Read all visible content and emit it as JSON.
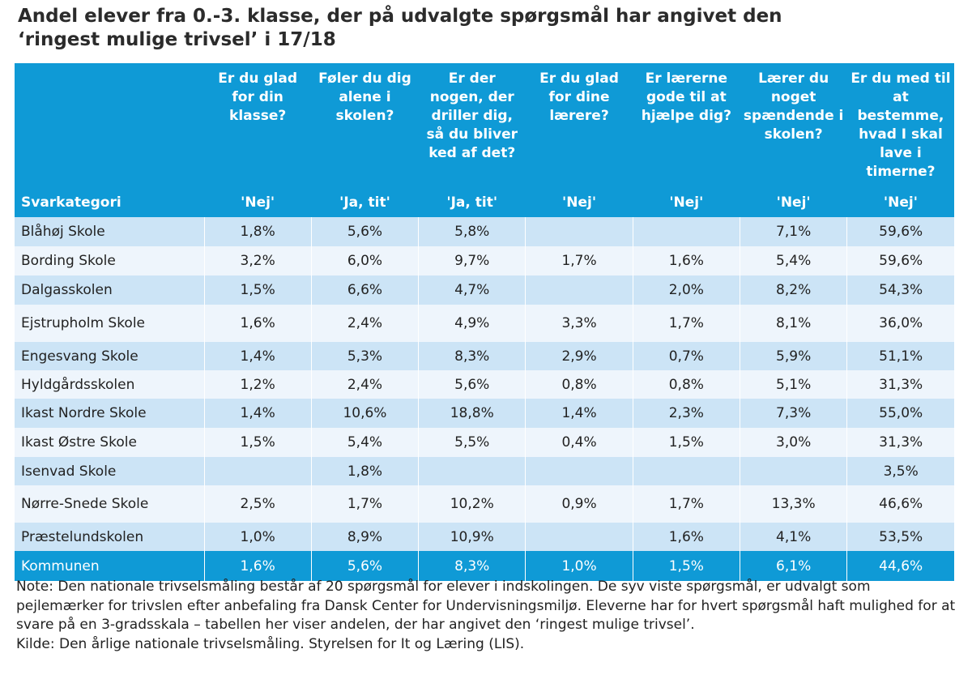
{
  "title": "Andel elever fra 0.-3. klasse, der på udvalgte spørgsmål har angivet den\n‘ringest mulige trivsel’ i 17/18",
  "table": {
    "first_column_header": "Svarkategori",
    "questions": [
      "Er du glad for din klasse?",
      "Føler du dig alene i skolen?",
      "Er der nogen, der driller dig, så du bliver ked af det?",
      "Er du glad for dine lærere?",
      "Er lærerne gode til at hjælpe dig?",
      "Lærer du noget spændende i skolen?",
      "Er du med til at bestemme, hvad I skal lave i timerne?"
    ],
    "answers": [
      "'Nej'",
      "'Ja, tit'",
      "'Ja, tit'",
      "'Nej'",
      "'Nej'",
      "'Nej'",
      "'Nej'"
    ],
    "rows": [
      {
        "name": "Blåhøj Skole",
        "values": [
          "1,8%",
          "5,6%",
          "5,8%",
          "",
          "",
          "7,1%",
          "59,6%"
        ]
      },
      {
        "name": "Bording Skole",
        "values": [
          "3,2%",
          "6,0%",
          "9,7%",
          "1,7%",
          "1,6%",
          "5,4%",
          "59,6%"
        ]
      },
      {
        "name": "Dalgasskolen",
        "values": [
          "1,5%",
          "6,6%",
          "4,7%",
          "",
          "2,0%",
          "8,2%",
          "54,3%"
        ]
      },
      {
        "name": "Ejstrupholm Skole",
        "values": [
          "1,6%",
          "2,4%",
          "4,9%",
          "3,3%",
          "1,7%",
          "8,1%",
          "36,0%"
        ]
      },
      {
        "name": "Engesvang Skole",
        "values": [
          "1,4%",
          "5,3%",
          "8,3%",
          "2,9%",
          "0,7%",
          "5,9%",
          "51,1%"
        ]
      },
      {
        "name": "Hyldgårdsskolen",
        "values": [
          "1,2%",
          "2,4%",
          "5,6%",
          "0,8%",
          "0,8%",
          "5,1%",
          "31,3%"
        ]
      },
      {
        "name": "Ikast Nordre Skole",
        "values": [
          "1,4%",
          "10,6%",
          "18,8%",
          "1,4%",
          "2,3%",
          "7,3%",
          "55,0%"
        ]
      },
      {
        "name": "Ikast Østre Skole",
        "values": [
          "1,5%",
          "5,4%",
          "5,5%",
          "0,4%",
          "1,5%",
          "3,0%",
          "31,3%"
        ]
      },
      {
        "name": "Isenvad Skole",
        "values": [
          "",
          "1,8%",
          "",
          "",
          "",
          "",
          "3,5%"
        ]
      },
      {
        "name": "Nørre-Snede Skole",
        "values": [
          "2,5%",
          "1,7%",
          "10,2%",
          "0,9%",
          "1,7%",
          "13,3%",
          "46,6%"
        ]
      },
      {
        "name": "Præstelundskolen",
        "values": [
          "1,0%",
          "8,9%",
          "10,9%",
          "",
          "1,6%",
          "4,1%",
          "53,5%"
        ]
      }
    ],
    "total": {
      "name": "Kommunen",
      "values": [
        "1,6%",
        "5,6%",
        "8,3%",
        "1,0%",
        "1,5%",
        "6,1%",
        "44,6%"
      ]
    }
  },
  "note": "Note: Den nationale trivselsmåling består af 20 spørgsmål for elever i indskolingen. De syv viste spørgsmål, er udvalgt som pejlemærker for trivslen efter anbefaling fra Dansk Center for Undervisningsmiljø. Eleverne har for hvert spørgsmål haft mulighed for at svare på en 3-gradsskala – tabellen her viser andelen, der har angivet den ‘ringest mulige trivsel’.",
  "source": "Kilde: Den årlige nationale trivselsmåling. Styrelsen for It og Læring (LIS).",
  "colors": {
    "header_blue": "#0f9ad6",
    "row_dark": "#cce4f6",
    "row_light": "#eef5fc"
  }
}
